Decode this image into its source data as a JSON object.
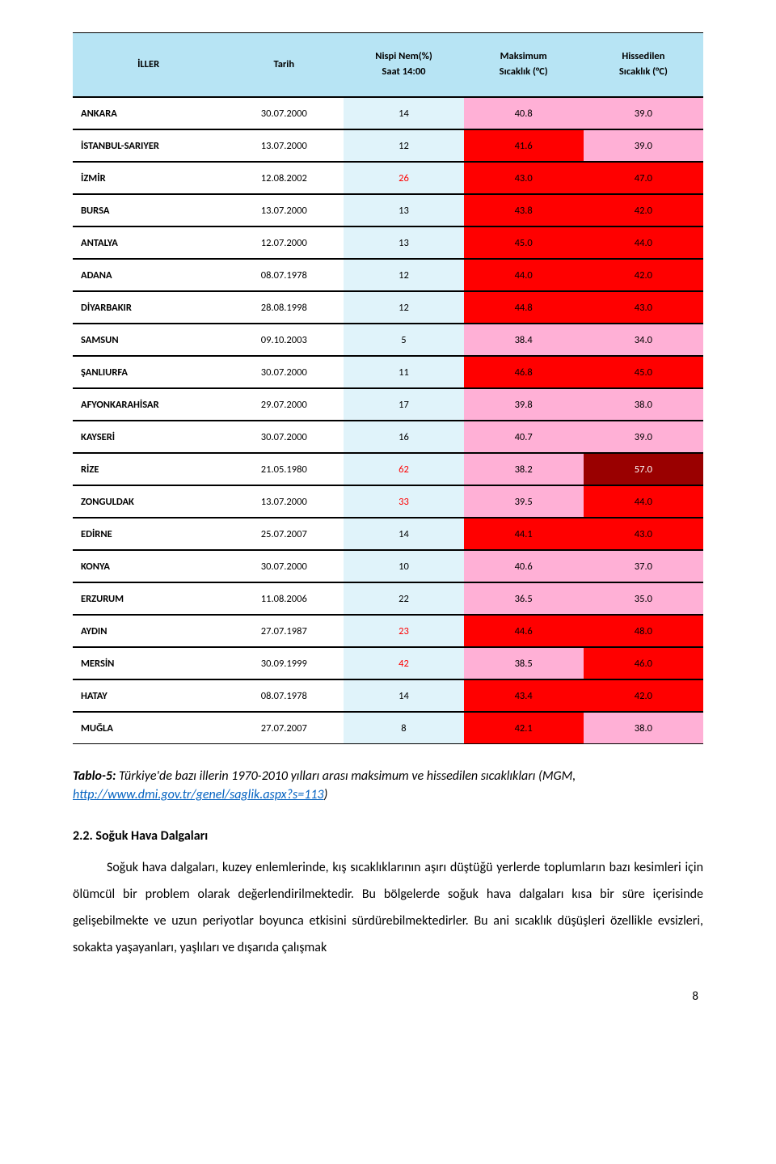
{
  "colors": {
    "header_bg": "#b7e4f4",
    "lightcyan": "#e0f3fa",
    "pink": "#ffb0d6",
    "deep_pink": "#ff66b4",
    "red": "#ff0000",
    "dark_red": "#9a0000",
    "white": "#ffffff",
    "black": "#000000",
    "link": "#0563c1"
  },
  "table": {
    "headers": [
      "İLLER",
      "Tarih",
      "Nispi Nem(%)\nSaat 14:00",
      "Maksimum\nSıcaklık (°C)",
      "Hissedilen\nSıcaklık (°C)"
    ],
    "rows": [
      {
        "city": "ANKARA",
        "date": "30.07.2000",
        "hum": "14",
        "hum_bg": "lightcyan",
        "hum_red": false,
        "max": "40.8",
        "max_bg": "pink",
        "felt": "39.0",
        "felt_bg": "pink"
      },
      {
        "city": "İSTANBUL-SARIYER",
        "date": "13.07.2000",
        "hum": "12",
        "hum_bg": "lightcyan",
        "hum_red": false,
        "max": "41.6",
        "max_bg": "red",
        "felt": "39.0",
        "felt_bg": "pink"
      },
      {
        "city": "İZMİR",
        "date": "12.08.2002",
        "hum": "26",
        "hum_bg": "lightcyan",
        "hum_red": true,
        "max": "43.0",
        "max_bg": "red",
        "felt": "47.0",
        "felt_bg": "red"
      },
      {
        "city": "BURSA",
        "date": "13.07.2000",
        "hum": "13",
        "hum_bg": "lightcyan",
        "hum_red": false,
        "max": "43.8",
        "max_bg": "red",
        "felt": "42.0",
        "felt_bg": "red"
      },
      {
        "city": "ANTALYA",
        "date": "12.07.2000",
        "hum": "13",
        "hum_bg": "lightcyan",
        "hum_red": false,
        "max": "45.0",
        "max_bg": "red",
        "felt": "44.0",
        "felt_bg": "red"
      },
      {
        "city": "ADANA",
        "date": "08.07.1978",
        "hum": "12",
        "hum_bg": "lightcyan",
        "hum_red": false,
        "max": "44.0",
        "max_bg": "red",
        "felt": "42.0",
        "felt_bg": "red"
      },
      {
        "city": "DİYARBAKIR",
        "date": "28.08.1998",
        "hum": "12",
        "hum_bg": "lightcyan",
        "hum_red": false,
        "max": "44.8",
        "max_bg": "red",
        "felt": "43.0",
        "felt_bg": "red"
      },
      {
        "city": "SAMSUN",
        "date": "09.10.2003",
        "hum": "5",
        "hum_bg": "lightcyan",
        "hum_red": false,
        "max": "38.4",
        "max_bg": "pink",
        "felt": "34.0",
        "felt_bg": "pink"
      },
      {
        "city": "ŞANLIURFA",
        "date": "30.07.2000",
        "hum": "11",
        "hum_bg": "lightcyan",
        "hum_red": false,
        "max": "46.8",
        "max_bg": "red",
        "felt": "45.0",
        "felt_bg": "red"
      },
      {
        "city": "AFYONKARAHİSAR",
        "date": "29.07.2000",
        "hum": "17",
        "hum_bg": "lightcyan",
        "hum_red": false,
        "max": "39.8",
        "max_bg": "pink",
        "felt": "38.0",
        "felt_bg": "pink"
      },
      {
        "city": "KAYSERİ",
        "date": "30.07.2000",
        "hum": "16",
        "hum_bg": "lightcyan",
        "hum_red": false,
        "max": "40.7",
        "max_bg": "pink",
        "felt": "39.0",
        "felt_bg": "pink"
      },
      {
        "city": "RİZE",
        "date": "21.05.1980",
        "hum": "62",
        "hum_bg": "lightcyan",
        "hum_red": true,
        "max": "38.2",
        "max_bg": "pink",
        "felt": "57.0",
        "felt_bg": "dark_red"
      },
      {
        "city": "ZONGULDAK",
        "date": "13.07.2000",
        "hum": "33",
        "hum_bg": "lightcyan",
        "hum_red": true,
        "max": "39.5",
        "max_bg": "pink",
        "felt": "44.0",
        "felt_bg": "red"
      },
      {
        "city": "EDİRNE",
        "date": "25.07.2007",
        "hum": "14",
        "hum_bg": "lightcyan",
        "hum_red": false,
        "max": "44.1",
        "max_bg": "red",
        "felt": "43.0",
        "felt_bg": "red"
      },
      {
        "city": "KONYA",
        "date": "30.07.2000",
        "hum": "10",
        "hum_bg": "lightcyan",
        "hum_red": false,
        "max": "40.6",
        "max_bg": "pink",
        "felt": "37.0",
        "felt_bg": "pink"
      },
      {
        "city": "ERZURUM",
        "date": "11.08.2006",
        "hum": "22",
        "hum_bg": "lightcyan",
        "hum_red": false,
        "max": "36.5",
        "max_bg": "pink",
        "felt": "35.0",
        "felt_bg": "pink"
      },
      {
        "city": "AYDIN",
        "date": "27.07.1987",
        "hum": "23",
        "hum_bg": "lightcyan",
        "hum_red": true,
        "max": "44.6",
        "max_bg": "red",
        "felt": "48.0",
        "felt_bg": "red"
      },
      {
        "city": "MERSİN",
        "date": "30.09.1999",
        "hum": "42",
        "hum_bg": "lightcyan",
        "hum_red": true,
        "max": "38.5",
        "max_bg": "pink",
        "felt": "46.0",
        "felt_bg": "red"
      },
      {
        "city": "HATAY",
        "date": "08.07.1978",
        "hum": "14",
        "hum_bg": "lightcyan",
        "hum_red": false,
        "max": "43.4",
        "max_bg": "red",
        "felt": "42.0",
        "felt_bg": "red"
      },
      {
        "city": "MUĞLA",
        "date": "27.07.2007",
        "hum": "8",
        "hum_bg": "lightcyan",
        "hum_red": false,
        "max": "42.1",
        "max_bg": "red",
        "felt": "38.0",
        "felt_bg": "pink"
      }
    ]
  },
  "caption": {
    "prefix": "Tablo-5:",
    "text": " Türkiye'de bazı illerin 1970-2010 yılları arası maksimum ve hissedilen sıcaklıkları (MGM, ",
    "link_text": "http://www.dmi.gov.tr/genel/saglik.aspx?s=113",
    "suffix": ")"
  },
  "section": {
    "title": "2.2. Soğuk Hava Dalgaları",
    "paragraph": "Soğuk hava dalgaları, kuzey enlemlerinde, kış sıcaklıklarının aşırı düştüğü yerlerde toplumların bazı kesimleri için ölümcül bir problem olarak değerlendirilmektedir. Bu bölgelerde soğuk hava dalgaları kısa bir süre içerisinde gelişebilmekte ve uzun periyotlar boyunca etkisini sürdürebilmektedirler. Bu ani sıcaklık düşüşleri özellikle evsizleri, sokakta yaşayanları, yaşlıları ve dışarıda çalışmak"
  },
  "page_number": "8"
}
